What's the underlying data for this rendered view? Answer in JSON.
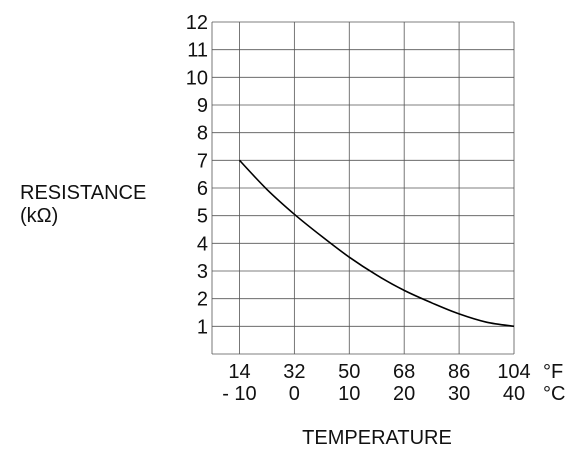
{
  "chart_data": {
    "type": "line",
    "ylabel": "RESISTANCE",
    "ylabel_unit": "(kΩ)",
    "xlabel": "TEMPERATURE",
    "x_unit_f": "°F",
    "x_unit_c": "°C",
    "x_ticks_c": [
      -10,
      0,
      10,
      20,
      30,
      40
    ],
    "x_tick_labels_f": [
      "14",
      "32",
      "50",
      "68",
      "86",
      "104"
    ],
    "x_tick_labels_c": [
      "- 10",
      "0",
      "10",
      "20",
      "30",
      "40"
    ],
    "xlim_c": [
      -15,
      40
    ],
    "ylim": [
      0,
      12
    ],
    "y_ticks": [
      1,
      2,
      3,
      4,
      5,
      6,
      7,
      8,
      9,
      10,
      11,
      12
    ],
    "grid": true,
    "series": [
      {
        "x_c": [
          -10,
          -5,
          0,
          5,
          10,
          15,
          20,
          25,
          30,
          35,
          40
        ],
        "y": [
          7.0,
          5.95,
          5.05,
          4.25,
          3.5,
          2.85,
          2.3,
          1.85,
          1.45,
          1.15,
          1.0
        ]
      }
    ]
  }
}
